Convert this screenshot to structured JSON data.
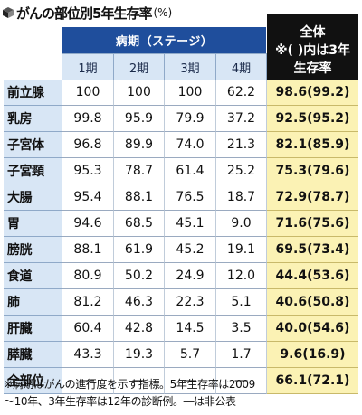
{
  "title": {
    "text": "がんの部位別5年生存率",
    "unit": "(%)"
  },
  "colors": {
    "header_blue": "#1f4e9c",
    "row_label_bg": "#d8e6f5",
    "overall_header_bg": "#111111",
    "overall_cell_bg": "#fbf2b4"
  },
  "chart_data": {
    "type": "table",
    "group_header": "病期（ステージ）",
    "columns": [
      "1期",
      "2期",
      "3期",
      "4期"
    ],
    "overall_header": [
      "全体",
      "※( )内は3年",
      "生存率"
    ],
    "rows": [
      {
        "site": "前立腺",
        "values": [
          "100",
          "100",
          "100",
          "62.2"
        ],
        "overall": "98.6(99.2)"
      },
      {
        "site": "乳房",
        "values": [
          "99.8",
          "95.9",
          "79.9",
          "37.2"
        ],
        "overall": "92.5(95.2)"
      },
      {
        "site": "子宮体",
        "values": [
          "96.8",
          "89.9",
          "74.0",
          "21.3"
        ],
        "overall": "82.1(85.9)"
      },
      {
        "site": "子宮頸",
        "values": [
          "95.3",
          "78.7",
          "61.4",
          "25.2"
        ],
        "overall": "75.3(79.6)"
      },
      {
        "site": "大腸",
        "values": [
          "95.4",
          "88.1",
          "76.5",
          "18.7"
        ],
        "overall": "72.9(78.7)"
      },
      {
        "site": "胃",
        "values": [
          "94.6",
          "68.5",
          "45.1",
          "9.0"
        ],
        "overall": "71.6(75.6)"
      },
      {
        "site": "膀胱",
        "values": [
          "88.1",
          "61.9",
          "45.2",
          "19.1"
        ],
        "overall": "69.5(73.4)"
      },
      {
        "site": "食道",
        "values": [
          "80.9",
          "50.2",
          "24.9",
          "12.0"
        ],
        "overall": "44.4(53.6)"
      },
      {
        "site": "肺",
        "values": [
          "81.2",
          "46.3",
          "22.3",
          "5.1"
        ],
        "overall": "40.6(50.8)"
      },
      {
        "site": "肝臓",
        "values": [
          "60.4",
          "42.8",
          "14.5",
          "3.5"
        ],
        "overall": "40.0(54.6)"
      },
      {
        "site": "膵臓",
        "values": [
          "43.3",
          "19.3",
          "5.7",
          "1.7"
        ],
        "overall": "9.6(16.9)"
      },
      {
        "site": "全部位",
        "values": [
          "―",
          "―",
          "―",
          "―"
        ],
        "overall": "66.1(72.1)"
      }
    ]
  },
  "note": {
    "line1": "※病期はがんの進行度を示す指標。5年生存率は2009",
    "line2": "～10年、3年生存率は12年の診断例。―は非公表"
  }
}
